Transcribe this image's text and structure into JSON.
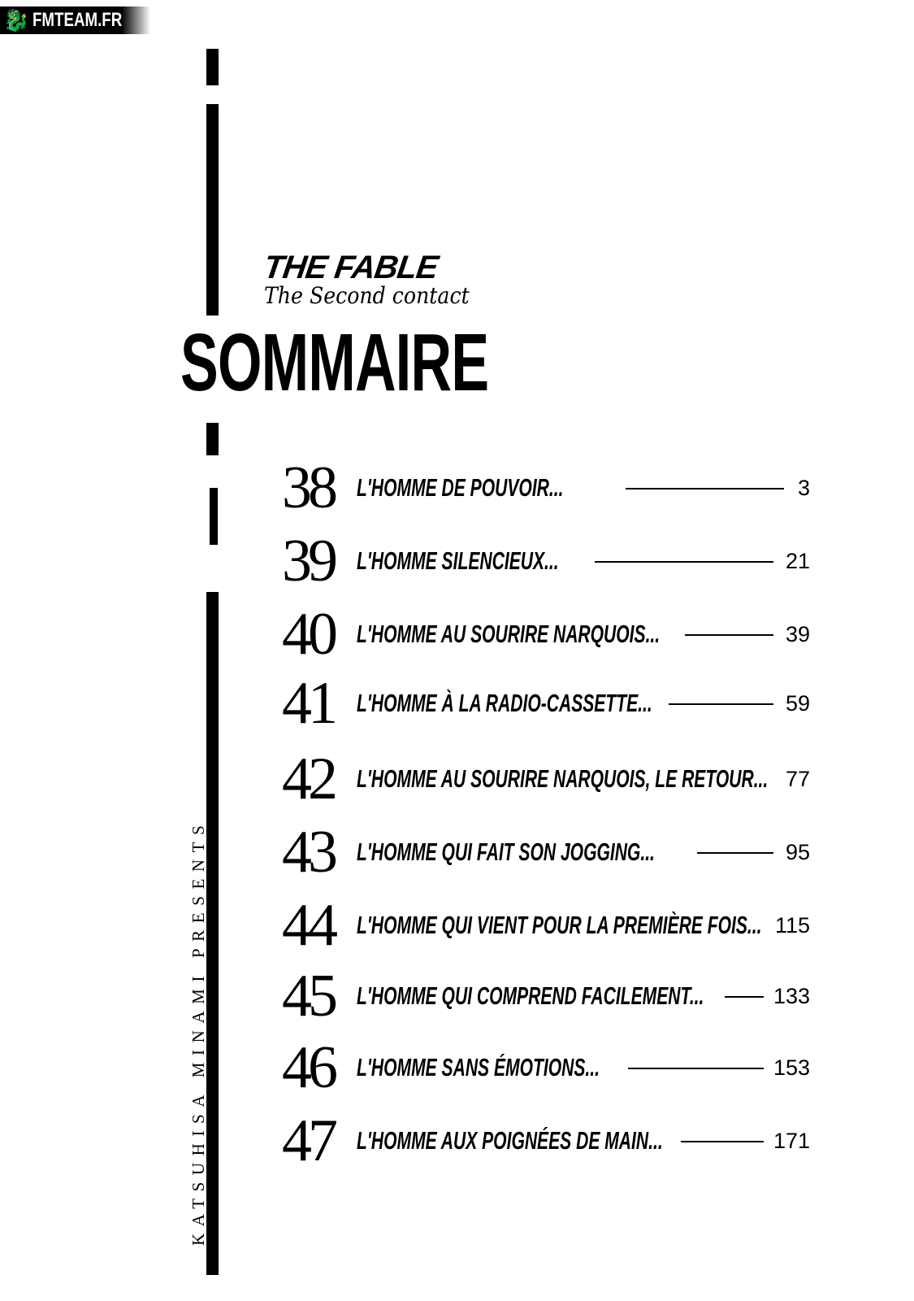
{
  "watermark": {
    "text": "FMTEAM.FR",
    "icon": "dragon-icon"
  },
  "credit": "KATSUHISA MINAMI PRESENTS",
  "series": {
    "title": "THE FABLE",
    "subtitle": "The Second contact"
  },
  "heading": "SOMMAIRE",
  "chapters": [
    {
      "number": "38",
      "title": "L'HOMME DE POUVOIR...",
      "page": "3"
    },
    {
      "number": "39",
      "title": "L'HOMME SILENCIEUX...",
      "page": "21"
    },
    {
      "number": "40",
      "title": "L'HOMME AU SOURIRE NARQUOIS...",
      "page": "39"
    },
    {
      "number": "41",
      "title": "L'HOMME À LA RADIO-CASSETTE...",
      "page": "59"
    },
    {
      "number": "42",
      "title": "L'HOMME AU SOURIRE NARQUOIS, LE RETOUR...",
      "page": "77"
    },
    {
      "number": "43",
      "title": "L'HOMME QUI FAIT SON JOGGING...",
      "page": "95"
    },
    {
      "number": "44",
      "title": "L'HOMME QUI VIENT POUR LA PREMIÈRE FOIS...",
      "page": "115"
    },
    {
      "number": "45",
      "title": "L'HOMME QUI COMPREND FACILEMENT...",
      "page": "133"
    },
    {
      "number": "46",
      "title": "L'HOMME SANS ÉMOTIONS...",
      "page": "153"
    },
    {
      "number": "47",
      "title": "L'HOMME AUX POIGNÉES DE MAIN...",
      "page": "171"
    }
  ]
}
